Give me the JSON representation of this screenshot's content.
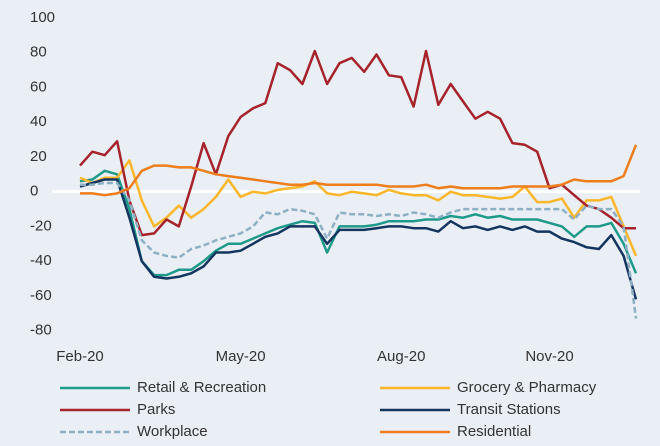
{
  "chart_data": {
    "type": "line",
    "categories": [
      "Feb-20",
      null,
      null,
      null,
      null,
      null,
      null,
      null,
      null,
      null,
      null,
      null,
      null,
      "May-20",
      null,
      null,
      null,
      null,
      null,
      null,
      null,
      null,
      null,
      null,
      null,
      null,
      "Aug-20",
      null,
      null,
      null,
      null,
      null,
      null,
      null,
      null,
      null,
      null,
      null,
      "Nov-20",
      null,
      null,
      null,
      null,
      null,
      null,
      null
    ],
    "ylim": [
      -90,
      100
    ],
    "yticks": [
      -80,
      -60,
      -40,
      -20,
      0,
      20,
      40,
      60,
      80,
      100
    ],
    "legend": "bottom",
    "series": [
      {
        "name": "Retail & Recreation",
        "color": "#1f9a8a",
        "values": [
          6,
          7,
          12,
          10,
          -10,
          -40,
          -48,
          -48,
          -45,
          -45,
          -40,
          -34,
          -30,
          -30,
          -27,
          -24,
          -21,
          -19,
          -17,
          -18,
          -35,
          -20,
          -20,
          -20,
          -19,
          -17,
          -17,
          -17,
          -16,
          -16,
          -14,
          -15,
          -13,
          -15,
          -14,
          -16,
          -16,
          -16,
          -18,
          -20,
          -26,
          -20,
          -20,
          -18,
          -30,
          -47
        ]
      },
      {
        "name": "Grocery & Pharmacy",
        "color": "#fbb62a",
        "values": [
          8,
          5,
          8,
          8,
          18,
          -5,
          -20,
          -15,
          -8,
          -15,
          -10,
          -3,
          7,
          -3,
          0,
          -1,
          1,
          2,
          3,
          6,
          -1,
          -2,
          0,
          -1,
          -2,
          1,
          -1,
          -2,
          -2,
          -5,
          0,
          -2,
          -2,
          -3,
          -4,
          -3,
          3,
          -6,
          -6,
          -4,
          -15,
          -5,
          -5,
          -3,
          -20,
          -37
        ]
      },
      {
        "name": "Parks",
        "color": "#a6232b",
        "values": [
          15,
          23,
          21,
          29,
          -5,
          -25,
          -24,
          -16,
          -20,
          3,
          28,
          10,
          32,
          43,
          48,
          51,
          74,
          70,
          62,
          81,
          62,
          74,
          77,
          69,
          79,
          67,
          66,
          49,
          81,
          50,
          62,
          52,
          42,
          46,
          42,
          28,
          27,
          23,
          2,
          4,
          -2,
          -8,
          -10,
          -15,
          -21,
          -21
        ]
      },
      {
        "name": "Transit Stations",
        "color": "#14355f",
        "values": [
          3,
          5,
          7,
          7,
          -15,
          -40,
          -49,
          -50,
          -49,
          -47,
          -43,
          -35,
          -35,
          -34,
          -30,
          -26,
          -24,
          -20,
          -20,
          -20,
          -30,
          -22,
          -22,
          -22,
          -21,
          -20,
          -20,
          -21,
          -21,
          -23,
          -17,
          -21,
          -20,
          -22,
          -20,
          -22,
          -20,
          -23,
          -23,
          -27,
          -29,
          -32,
          -33,
          -25,
          -37,
          -62
        ]
      },
      {
        "name": "Workplace",
        "color": "#8fb0c4",
        "dash": true,
        "values": [
          4,
          4,
          5,
          5,
          -5,
          -28,
          -35,
          -37,
          -38,
          -33,
          -31,
          -28,
          -26,
          -24,
          -20,
          -12,
          -13,
          -10,
          -11,
          -13,
          -27,
          -12,
          -13,
          -13,
          -14,
          -13,
          -14,
          -12,
          -13,
          -15,
          -12,
          -10,
          -10,
          -10,
          -10,
          -10,
          -10,
          -10,
          -10,
          -10,
          -16,
          -8,
          -10,
          -10,
          -20,
          -73
        ]
      },
      {
        "name": "Residential",
        "color": "#ee7d1c",
        "values": [
          -1,
          -1,
          -2,
          -1,
          2,
          12,
          15,
          15,
          14,
          14,
          12,
          10,
          9,
          8,
          7,
          6,
          5,
          4,
          4,
          5,
          4,
          4,
          4,
          4,
          4,
          3,
          3,
          3,
          4,
          2,
          3,
          2,
          2,
          2,
          2,
          3,
          3,
          3,
          3,
          4,
          7,
          6,
          6,
          6,
          9,
          27
        ]
      }
    ]
  }
}
